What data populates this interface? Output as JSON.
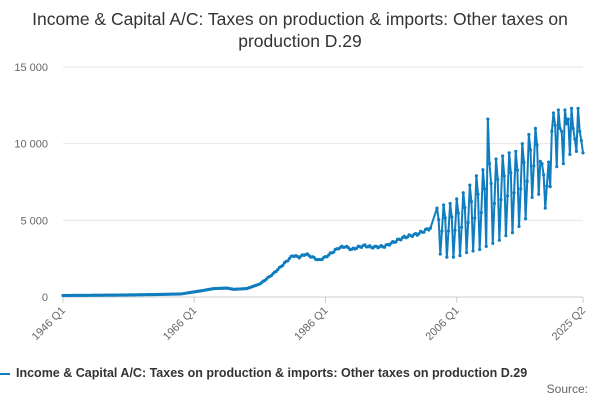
{
  "title": "Income & Capital A/C: Taxes on production & imports: Other taxes on production D.29",
  "legend": {
    "label": "Income & Capital A/C: Taxes on production & imports: Other taxes on production D.29",
    "color": "#0f7dbf"
  },
  "source_label": "Source:",
  "chart_data": {
    "type": "line",
    "title": "Income & Capital A/C: Taxes on production & imports: Other taxes on production D.29",
    "xlabel": "",
    "ylabel": "",
    "ylim": [
      0,
      15000
    ],
    "y_ticks": [
      0,
      5000,
      10000,
      15000
    ],
    "y_tick_labels": [
      "0",
      "5 000",
      "10 000",
      "15 000"
    ],
    "x_ticks": [
      "1946 Q1",
      "1966 Q1",
      "1986 Q1",
      "2006 Q1",
      "2025 Q2"
    ],
    "x_range": [
      "1946 Q1",
      "2025 Q2"
    ],
    "grid": "horizontal",
    "legend_position": "bottom",
    "series": [
      {
        "name": "Income & Capital A/C: Taxes on production & imports: Other taxes on production D.29",
        "color": "#0f7dbf",
        "annual_anchors": [
          [
            "1946",
            100
          ],
          [
            "1950",
            110
          ],
          [
            "1955",
            130
          ],
          [
            "1960",
            160
          ],
          [
            "1964",
            200
          ],
          [
            "1967",
            400
          ],
          [
            "1969",
            550
          ],
          [
            "1971",
            580
          ],
          [
            "1972",
            500
          ],
          [
            "1974",
            550
          ],
          [
            "1976",
            850
          ],
          [
            "1978",
            1500
          ],
          [
            "1980",
            2300
          ],
          [
            "1981",
            2700
          ],
          [
            "1982",
            2600
          ],
          [
            "1983",
            2800
          ],
          [
            "1985",
            2400
          ],
          [
            "1986",
            2600
          ],
          [
            "1987",
            2900
          ],
          [
            "1988",
            3200
          ],
          [
            "1989",
            3300
          ],
          [
            "1990",
            3100
          ],
          [
            "1991",
            3250
          ],
          [
            "1992",
            3350
          ],
          [
            "1993",
            3250
          ],
          [
            "1995",
            3300
          ],
          [
            "1997",
            3700
          ],
          [
            "1998",
            3900
          ],
          [
            "2000",
            4100
          ],
          [
            "2002",
            4500
          ]
        ],
        "seasonal_annual": [
          [
            "2003",
            5800,
            2800
          ],
          [
            "2004",
            6000,
            2600
          ],
          [
            "2005",
            6100,
            2600
          ],
          [
            "2006",
            6400,
            2700
          ],
          [
            "2007",
            6800,
            2900
          ],
          [
            "2008",
            7300,
            3000
          ],
          [
            "2009",
            7900,
            3100
          ],
          [
            "2010",
            8300,
            3300
          ],
          [
            "2011",
            8700,
            3500
          ],
          [
            "2012",
            9000,
            3700
          ],
          [
            "2013",
            9200,
            4000
          ],
          [
            "2014",
            9400,
            4200
          ],
          [
            "2015",
            9500,
            4600
          ],
          [
            "2016",
            10000,
            5100
          ],
          [
            "2017",
            10600,
            6500
          ],
          [
            "2018",
            11000,
            6700
          ],
          [
            "2019",
            8700,
            5800
          ]
        ],
        "recent_quarters": [
          [
            "2020 Q1",
            8800
          ],
          [
            "2020 Q2",
            7200
          ],
          [
            "2020 Q3",
            10800
          ],
          [
            "2020 Q4",
            12000
          ],
          [
            "2021 Q1",
            11200
          ],
          [
            "2021 Q2",
            8500
          ],
          [
            "2021 Q3",
            12200
          ],
          [
            "2021 Q4",
            11000
          ],
          [
            "2022 Q1",
            10800
          ],
          [
            "2022 Q2",
            8700
          ],
          [
            "2022 Q3",
            12200
          ],
          [
            "2022 Q4",
            11300
          ],
          [
            "2023 Q1",
            11600
          ],
          [
            "2023 Q2",
            9300
          ],
          [
            "2023 Q3",
            12300
          ],
          [
            "2023 Q4",
            11000
          ],
          [
            "2024 Q1",
            10300
          ],
          [
            "2024 Q2",
            9500
          ],
          [
            "2024 Q3",
            12300
          ],
          [
            "2024 Q4",
            10800
          ],
          [
            "2025 Q1",
            10200
          ],
          [
            "2025 Q2",
            9400
          ]
        ],
        "spike": [
          "2010 Q4",
          11600
        ]
      }
    ]
  }
}
